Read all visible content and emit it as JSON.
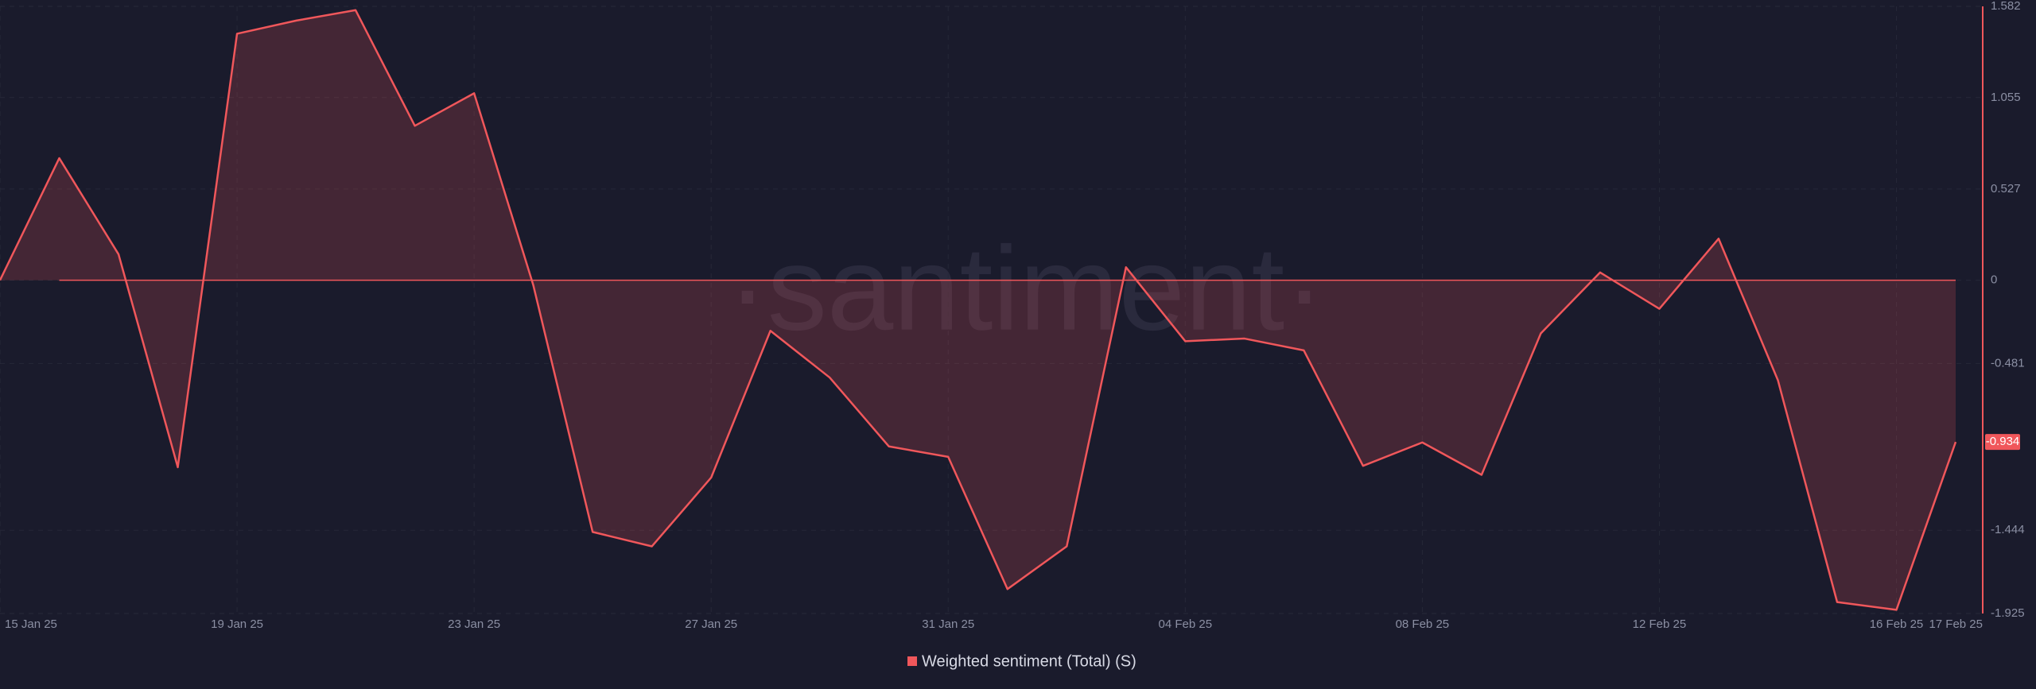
{
  "chart_data": {
    "type": "area",
    "watermark": "·santiment·",
    "categories": [
      "15 Jan 25",
      null,
      null,
      null,
      "19 Jan 25",
      null,
      null,
      null,
      "23 Jan 25",
      null,
      null,
      null,
      "27 Jan 25",
      null,
      null,
      null,
      "31 Jan 25",
      null,
      null,
      null,
      "04 Feb 25",
      null,
      null,
      null,
      "08 Feb 25",
      null,
      null,
      null,
      "12 Feb 25",
      null,
      null,
      null,
      "16 Feb 25",
      "17 Feb 25"
    ],
    "series": [
      {
        "name": "Weighted sentiment (Total) (S)",
        "color": "#f0575b",
        "values": [
          0,
          0.705,
          0.15,
          -1.08,
          1.424,
          1.5,
          1.56,
          0.892,
          1.08,
          -0.03,
          -1.454,
          -1.537,
          -1.14,
          -0.292,
          -0.562,
          -0.96,
          -1.02,
          -1.784,
          -1.537,
          0.075,
          -0.352,
          -0.337,
          -0.405,
          -1.072,
          -0.937,
          -1.124,
          -0.307,
          0.045,
          -0.165,
          0.24,
          -0.577,
          -1.859,
          -1.904,
          -0.934
        ],
        "value_labels": [
          null,
          null,
          null,
          null,
          null,
          null,
          null,
          null,
          null,
          null,
          null,
          null,
          null,
          null,
          null,
          null,
          null,
          null,
          null,
          null,
          null,
          null,
          null,
          null,
          null,
          null,
          null,
          null,
          null,
          null,
          null,
          null,
          null,
          "-0.934"
        ]
      }
    ],
    "ylim": [
      -1.925,
      1.582
    ],
    "yticks": [
      1.582,
      1.055,
      0.527,
      0,
      -0.481,
      -1.444,
      -1.925
    ],
    "grid": true
  }
}
